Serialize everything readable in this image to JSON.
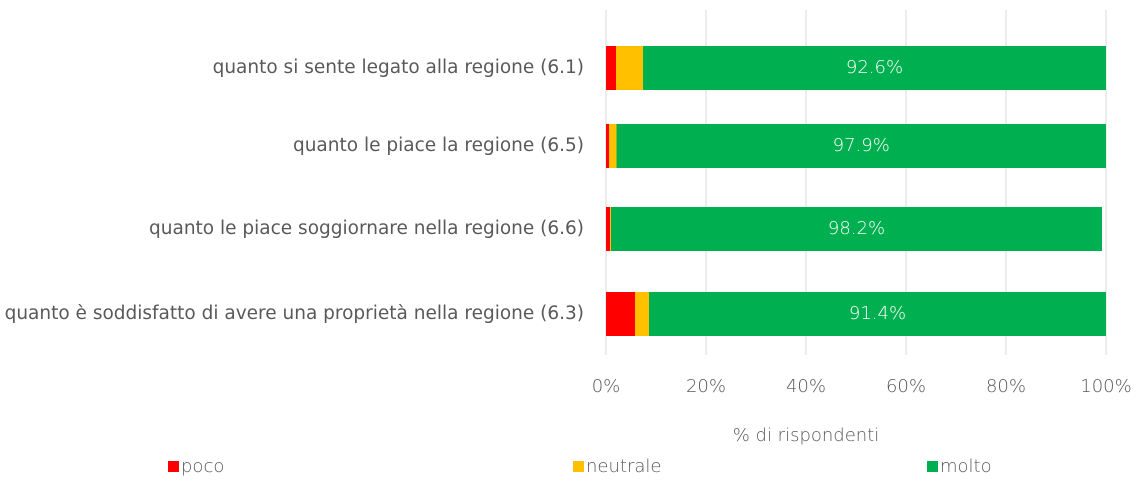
{
  "chart_data": {
    "type": "stacked_barh",
    "categories": [
      "quanto si sente legato alla regione (6.1)",
      "quanto le piace la regione (6.5)",
      "quanto le piace soggiornare nella regione (6.6)",
      "quanto è soddisfatto di avere una proprietà nella regione (6.3)"
    ],
    "series": [
      {
        "name": "poco",
        "color": "#ff0000",
        "values": [
          2.0,
          0.6,
          0.8,
          5.8
        ]
      },
      {
        "name": "neutrale",
        "color": "#ffc000",
        "values": [
          5.4,
          1.5,
          0.2,
          2.8
        ]
      },
      {
        "name": "molto",
        "color": "#00b050",
        "values": [
          92.6,
          97.9,
          98.2,
          91.4
        ],
        "value_labels": [
          "92.6%",
          "97.9%",
          "98.2%",
          "91.4%"
        ]
      }
    ],
    "xlabel": "% di rispondenti",
    "xlim": [
      0,
      100
    ],
    "xticks": [
      {
        "value": 0,
        "label": "0%"
      },
      {
        "value": 20,
        "label": "20%"
      },
      {
        "value": 40,
        "label": "40%"
      },
      {
        "value": 60,
        "label": "60%"
      },
      {
        "value": 80,
        "label": "80%"
      },
      {
        "value": 100,
        "label": "100%"
      }
    ],
    "grid": true,
    "legend": "bottom"
  }
}
